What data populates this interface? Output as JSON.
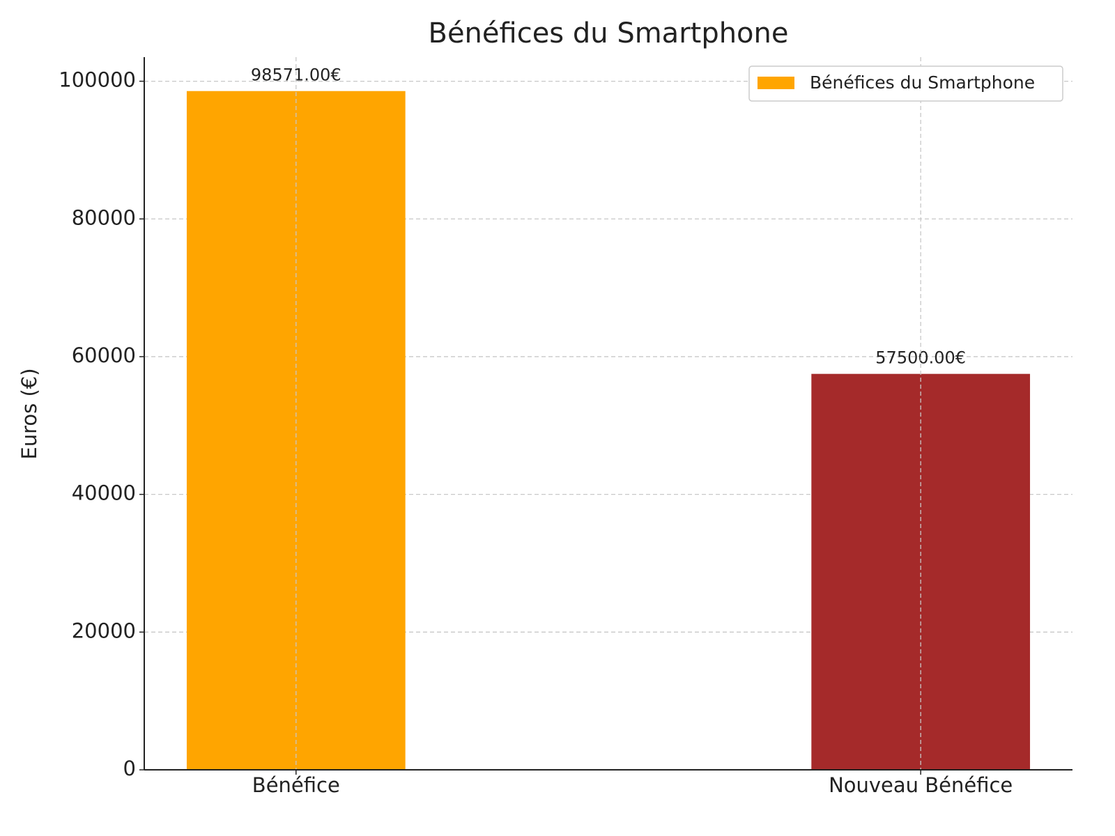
{
  "chart_data": {
    "type": "bar",
    "title": "Bénéfices du Smartphone",
    "y_label": "Euros (€)",
    "categories": [
      "Bénéfice",
      "Nouveau Bénéfice"
    ],
    "series": [
      {
        "name": "Bénéfices du Smartphone",
        "colors": [
          "#ffa500",
          "#a52a2a"
        ],
        "values": [
          98571,
          57500
        ],
        "value_labels": [
          "98571.00€",
          "57500.00€"
        ]
      }
    ],
    "ylim": [
      0,
      103500
    ],
    "yticks": [
      0,
      20000,
      40000,
      60000,
      80000,
      100000
    ],
    "grid": true,
    "legend": "upper right"
  }
}
